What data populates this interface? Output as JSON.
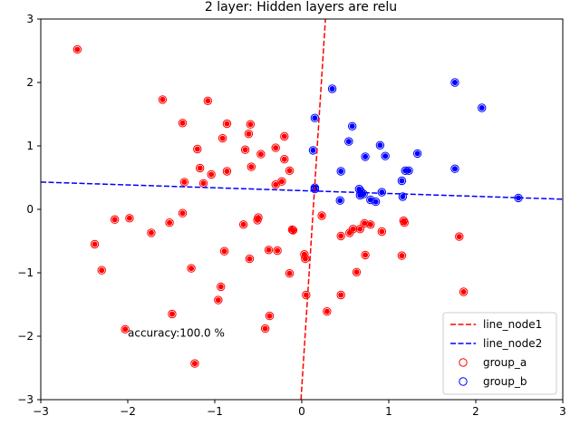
{
  "chart_data": {
    "type": "scatter",
    "title": "2 layer: Hidden layers are relu",
    "xlabel": "",
    "ylabel": "",
    "xlim": [
      -3,
      3
    ],
    "ylim": [
      -3,
      3
    ],
    "xticks": [
      -3,
      -2,
      -1,
      0,
      1,
      2,
      3
    ],
    "yticks": [
      -3,
      -2,
      -1,
      0,
      1,
      2,
      3
    ],
    "grid": false,
    "legend_position": "lower-right",
    "annotation": {
      "text": "accuracy:100.0 %",
      "x": -2.0,
      "y": -1.95
    },
    "lines": [
      {
        "name": "line_node1",
        "color": "#ff0000",
        "style": "dashed",
        "points": [
          [
            -0.009,
            -3.0
          ],
          [
            0.272,
            3.0
          ]
        ]
      },
      {
        "name": "line_node2",
        "color": "#0000ff",
        "style": "dashed",
        "points": [
          [
            -3.0,
            0.43
          ],
          [
            3.0,
            0.16
          ]
        ]
      }
    ],
    "series": [
      {
        "name": "group_a",
        "color": "#ff0000",
        "marker": "open-circle",
        "points": [
          [
            -2.58,
            2.52
          ],
          [
            -1.6,
            1.73
          ],
          [
            -1.08,
            1.71
          ],
          [
            -1.37,
            1.36
          ],
          [
            -0.86,
            1.35
          ],
          [
            -0.59,
            1.34
          ],
          [
            -0.91,
            1.12
          ],
          [
            -0.61,
            1.19
          ],
          [
            -0.2,
            1.15
          ],
          [
            -1.2,
            0.95
          ],
          [
            -0.65,
            0.94
          ],
          [
            -0.3,
            0.97
          ],
          [
            -0.47,
            0.87
          ],
          [
            -0.2,
            0.79
          ],
          [
            -1.17,
            0.65
          ],
          [
            -0.58,
            0.67
          ],
          [
            -0.14,
            0.61
          ],
          [
            -0.86,
            0.6
          ],
          [
            -1.04,
            0.55
          ],
          [
            -1.35,
            0.43
          ],
          [
            -1.13,
            0.41
          ],
          [
            -0.23,
            0.44
          ],
          [
            -0.3,
            0.39
          ],
          [
            0.23,
            -0.1
          ],
          [
            -2.15,
            -0.16
          ],
          [
            -1.98,
            -0.14
          ],
          [
            -1.37,
            -0.06
          ],
          [
            -1.52,
            -0.21
          ],
          [
            -0.67,
            -0.24
          ],
          [
            -0.5,
            -0.13
          ],
          [
            -0.51,
            -0.17
          ],
          [
            -1.73,
            -0.37
          ],
          [
            -2.38,
            -0.55
          ],
          [
            -0.89,
            -0.66
          ],
          [
            -0.38,
            -0.64
          ],
          [
            -0.28,
            -0.65
          ],
          [
            -0.6,
            -0.78
          ],
          [
            0.03,
            -0.71
          ],
          [
            0.04,
            -0.78
          ],
          [
            -2.3,
            -0.96
          ],
          [
            -1.27,
            -0.93
          ],
          [
            -0.14,
            -1.01
          ],
          [
            -0.93,
            -1.22
          ],
          [
            0.05,
            -1.35
          ],
          [
            -0.96,
            -1.43
          ],
          [
            0.45,
            -0.42
          ],
          [
            0.55,
            -0.37
          ],
          [
            0.59,
            -0.31
          ],
          [
            0.67,
            -0.31
          ],
          [
            0.72,
            -0.22
          ],
          [
            0.79,
            -0.24
          ],
          [
            0.92,
            -0.35
          ],
          [
            1.17,
            -0.18
          ],
          [
            1.18,
            -0.21
          ],
          [
            1.15,
            -0.73
          ],
          [
            0.73,
            -0.72
          ],
          [
            0.63,
            -0.99
          ],
          [
            1.81,
            -0.43
          ],
          [
            1.86,
            -1.3
          ],
          [
            0.45,
            -1.35
          ],
          [
            0.29,
            -1.61
          ],
          [
            -1.49,
            -1.65
          ],
          [
            -0.37,
            -1.68
          ],
          [
            -0.42,
            -1.88
          ],
          [
            -2.03,
            -1.89
          ],
          [
            -1.23,
            -2.43
          ],
          [
            -0.1,
            -0.33
          ],
          [
            -0.11,
            -0.32
          ]
        ]
      },
      {
        "name": "group_b",
        "color": "#0000ff",
        "marker": "open-circle",
        "points": [
          [
            0.35,
            1.9
          ],
          [
            1.76,
            2.0
          ],
          [
            2.07,
            1.6
          ],
          [
            0.15,
            1.44
          ],
          [
            0.58,
            1.31
          ],
          [
            0.54,
            1.07
          ],
          [
            0.9,
            1.01
          ],
          [
            0.13,
            0.93
          ],
          [
            0.73,
            0.83
          ],
          [
            0.96,
            0.84
          ],
          [
            1.33,
            0.88
          ],
          [
            0.45,
            0.6
          ],
          [
            1.19,
            0.61
          ],
          [
            1.23,
            0.61
          ],
          [
            1.76,
            0.64
          ],
          [
            1.15,
            0.45
          ],
          [
            0.66,
            0.32
          ],
          [
            0.68,
            0.28
          ],
          [
            0.67,
            0.22
          ],
          [
            0.71,
            0.24
          ],
          [
            0.92,
            0.27
          ],
          [
            1.16,
            0.2
          ],
          [
            0.79,
            0.15
          ],
          [
            0.85,
            0.12
          ],
          [
            0.44,
            0.14
          ],
          [
            2.49,
            0.18
          ],
          [
            0.15,
            0.34
          ],
          [
            0.15,
            0.32
          ]
        ]
      }
    ]
  }
}
